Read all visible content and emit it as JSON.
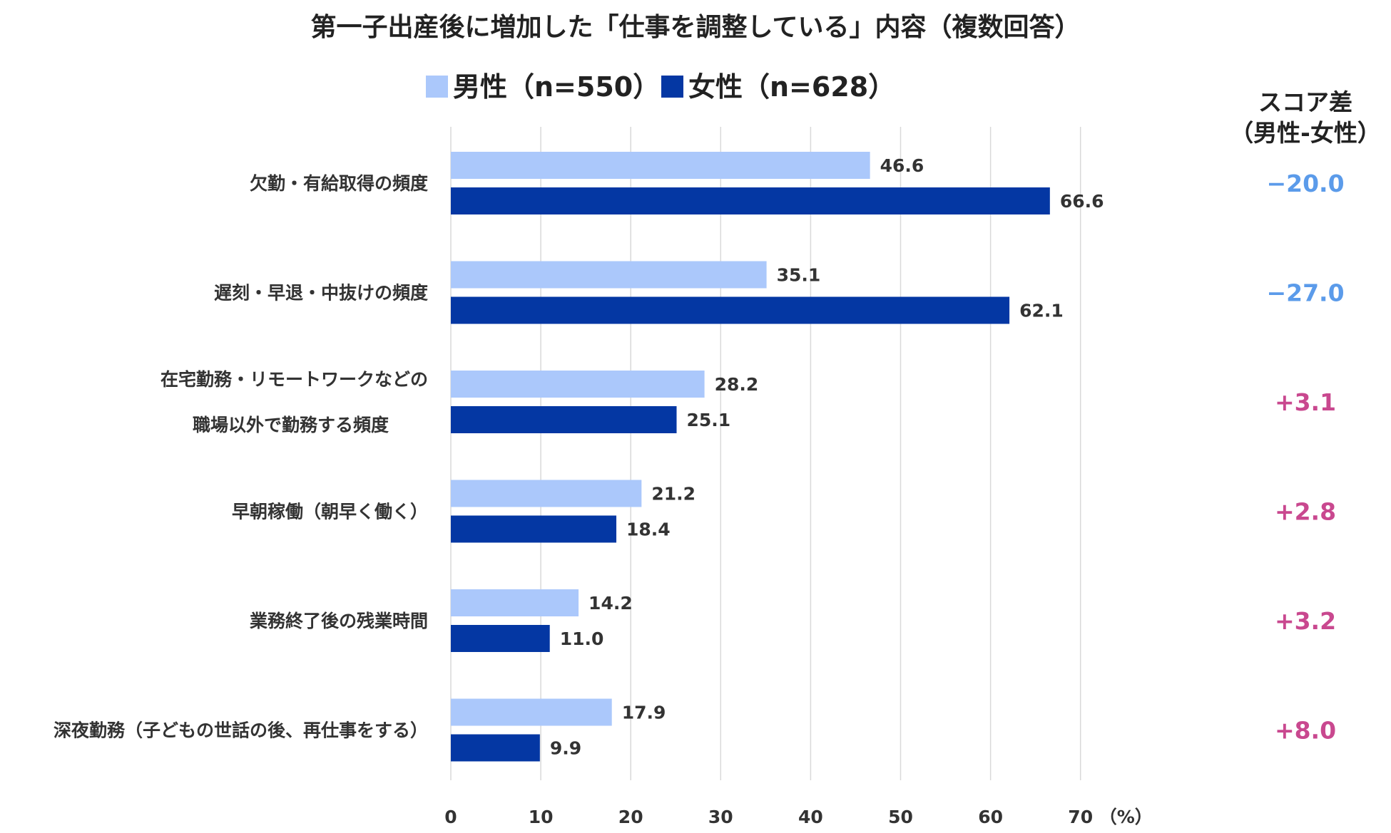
{
  "chart_data": {
    "type": "bar",
    "orientation": "horizontal",
    "title": "第一子出産後に増加した「仕事を調整している」内容（複数回答）",
    "categories": [
      [
        "欠勤・有給取得の頻度"
      ],
      [
        "遅刻・早退・中抜けの頻度"
      ],
      [
        "在宅勤務・リモートワークなどの",
        "職場以外で勤務する頻度"
      ],
      [
        "早朝稼働（朝早く働く）"
      ],
      [
        "業務終了後の残業時間"
      ],
      [
        "深夜勤務（子どもの世話の後、再仕事をする）"
      ]
    ],
    "series": [
      {
        "name": "男性（n=550）",
        "color": "#abc8fb",
        "values": [
          46.6,
          35.1,
          28.2,
          21.2,
          14.2,
          17.9
        ]
      },
      {
        "name": "女性（n=628）",
        "color": "#0437a3",
        "values": [
          66.6,
          62.1,
          25.1,
          18.4,
          11.0,
          9.9
        ]
      }
    ],
    "value_labels": [
      [
        "46.6",
        "35.1",
        "28.2",
        "21.2",
        "14.2",
        "17.9"
      ],
      [
        "66.6",
        "62.1",
        "25.1",
        "18.4",
        "11.0",
        "9.9"
      ]
    ],
    "xlim": [
      0,
      70
    ],
    "xticks": [
      0,
      10,
      20,
      30,
      40,
      50,
      60,
      70
    ],
    "xunit": "（%）",
    "grid": true,
    "legend_position": "top",
    "score_diff": {
      "header": [
        "スコア差",
        "（男性-女性）"
      ],
      "values": [
        "−20.0",
        "−27.0",
        "+3.1",
        "+2.8",
        "+3.2",
        "+8.0"
      ],
      "negative_color": "#5b9bea",
      "positive_color": "#c9488f"
    }
  }
}
